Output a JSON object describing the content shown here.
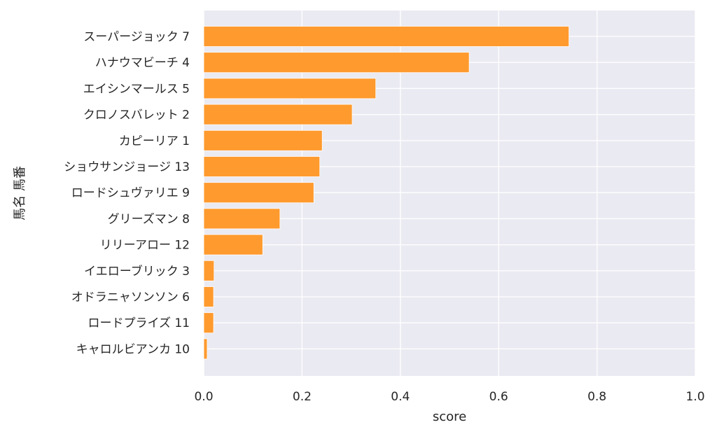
{
  "chart_data": {
    "type": "bar",
    "orientation": "horizontal",
    "xlabel": "score",
    "ylabel": "馬名 馬番",
    "xlim": [
      0.0,
      1.0
    ],
    "xticks": [
      "0.0",
      "0.2",
      "0.4",
      "0.6",
      "0.8",
      "1.0"
    ],
    "grid": true,
    "categories": [
      "スーパージョック 7",
      "ハナウマビーチ 4",
      "エイシンマールス 5",
      "クロノスバレット 2",
      "カピーリア 1",
      "ショウサンジョージ 13",
      "ロードシュヴァリエ 9",
      "グリーズマン 8",
      "リリーアロー 12",
      "イエローブリック 3",
      "オドラニャソンソン 6",
      "ロードプライズ 11",
      "キャロルビアンカ 10"
    ],
    "values": [
      0.743,
      0.54,
      0.35,
      0.302,
      0.241,
      0.236,
      0.224,
      0.155,
      0.12,
      0.021,
      0.02,
      0.02,
      0.007
    ],
    "colors": {
      "bar": "#ff9a2e",
      "bar_edge": "#ffffff",
      "plot_background": "#eaeaf2",
      "grid": "#ffffff"
    }
  }
}
